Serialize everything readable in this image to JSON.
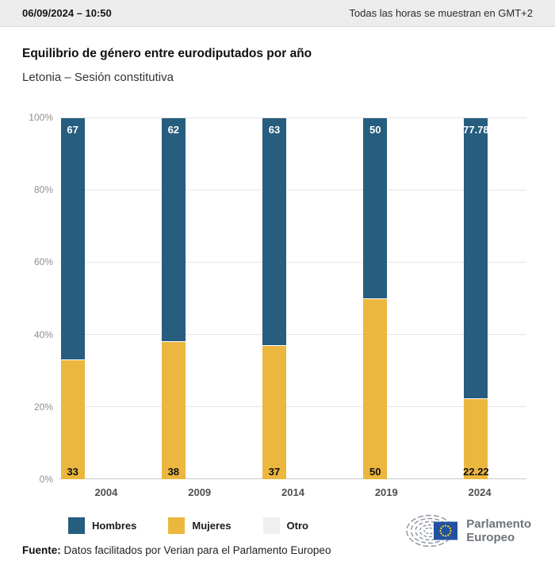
{
  "header": {
    "datetime": "06/09/2024 – 10:50",
    "timezone_note": "Todas las horas se muestran en GMT+2"
  },
  "title": "Equilibrio de género entre eurodiputados por año",
  "subtitle": "Letonia – Sesión constitutiva",
  "chart_data": {
    "type": "bar",
    "stacked": true,
    "stack_total": 100,
    "categories": [
      "2004",
      "2009",
      "2014",
      "2019",
      "2024"
    ],
    "series": [
      {
        "name": "Hombres",
        "color": "#275d7e",
        "values": [
          67,
          62,
          63,
          50,
          77.78
        ],
        "labels": [
          "67",
          "62",
          "63",
          "50",
          "77.78"
        ]
      },
      {
        "name": "Mujeres",
        "color": "#ecb73e",
        "values": [
          33,
          38,
          37,
          50,
          22.22
        ],
        "labels": [
          "33",
          "38",
          "37",
          "50",
          "22.22"
        ]
      },
      {
        "name": "Otro",
        "color": "#efefef",
        "values": [
          0,
          0,
          0,
          0,
          0
        ],
        "labels": [
          "",
          "",
          "",
          "",
          ""
        ]
      }
    ],
    "ylim": [
      0,
      100
    ],
    "yticks": [
      "0%",
      "20%",
      "40%",
      "60%",
      "80%",
      "100%"
    ],
    "grid": true,
    "legend_position": "bottom"
  },
  "footer": {
    "source_label": "Fuente:",
    "source_text": " Datos facilitados por Verian para el Parlamento Europeo"
  },
  "logo": {
    "line1": "Parlamento",
    "line2": "Europeo",
    "flag_blue": "#2151a1",
    "star_yellow": "#ffd617",
    "hemicycle_gray": "#8b929b"
  }
}
